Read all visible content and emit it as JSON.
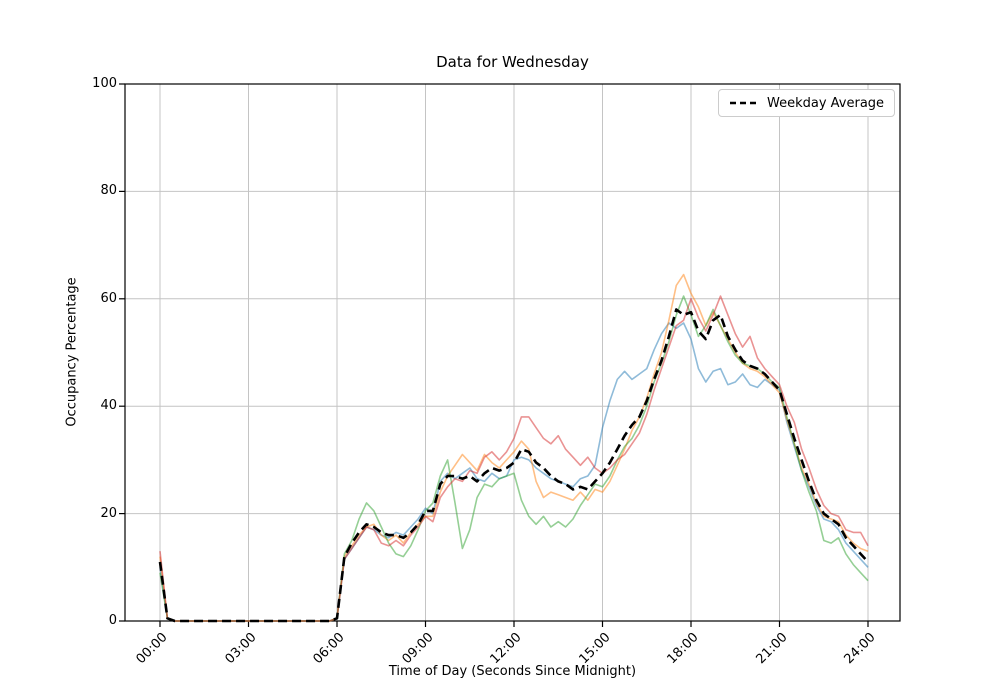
{
  "chart_data": {
    "type": "line",
    "title": "Data for Wednesday",
    "xlabel": "Time of Day (Seconds Since Midnight)",
    "ylabel": "Occupancy Percentage",
    "x_tick_labels": [
      "00:00",
      "03:00",
      "06:00",
      "09:00",
      "12:00",
      "15:00",
      "18:00",
      "21:00",
      "24:00"
    ],
    "x_tick_hours": [
      0,
      3,
      6,
      9,
      12,
      15,
      18,
      21,
      24
    ],
    "y_ticks": [
      0,
      20,
      40,
      60,
      80,
      100
    ],
    "ylim": [
      0,
      100
    ],
    "grid": true,
    "grid_color": "#c4c4c4",
    "legend": {
      "label": "Weekday Average",
      "position": "upper right"
    },
    "x_start_hour": 0,
    "x_step_hours": 0.25,
    "series": [
      {
        "id": "day-series-1",
        "color": "#1f77b4",
        "opacity": 0.5,
        "line_width": 1.6,
        "dash": "",
        "values": [
          10,
          0.5,
          0,
          0,
          0,
          0,
          0,
          0,
          0,
          0,
          0,
          0,
          0,
          0,
          0,
          0,
          0,
          0,
          0,
          0,
          0,
          0,
          0,
          0,
          0.5,
          11.5,
          13.5,
          15.5,
          17.5,
          17,
          16,
          15.5,
          16.5,
          16,
          17.5,
          19,
          21,
          20,
          26,
          27.5,
          26.5,
          27.5,
          28.5,
          26.5,
          26,
          27.5,
          26.5,
          27,
          30,
          30.5,
          30,
          28.5,
          27.5,
          26.5,
          26,
          25.5,
          25,
          26.5,
          27,
          29,
          36,
          41,
          45,
          46.5,
          45,
          46,
          47,
          50.5,
          53.5,
          55.5,
          54.5,
          55.5,
          52.5,
          47,
          44.5,
          46.5,
          47,
          44,
          44.5,
          46,
          44,
          43.5,
          45,
          44,
          43,
          37,
          32.5,
          28,
          25,
          21.5,
          19,
          18.5,
          17,
          14.5,
          13,
          11.5,
          10
        ]
      },
      {
        "id": "day-series-2",
        "color": "#ff7f0e",
        "opacity": 0.5,
        "line_width": 1.6,
        "dash": "",
        "values": [
          12,
          0.5,
          0,
          0,
          0,
          0,
          0,
          0,
          0,
          0,
          0,
          0,
          0,
          0,
          0,
          0,
          0,
          0,
          0,
          0,
          0,
          0,
          0,
          0,
          0.5,
          12,
          14,
          16,
          17.5,
          18,
          16,
          15,
          16,
          14.5,
          16.5,
          18,
          19.5,
          19.5,
          24,
          27,
          29,
          31,
          29.5,
          28,
          31,
          29.5,
          28.5,
          30,
          31.5,
          33.5,
          32,
          26,
          23,
          24,
          23.5,
          23,
          22.5,
          24,
          22.5,
          24.5,
          24,
          26,
          29,
          32,
          35.5,
          38,
          41.5,
          46,
          50,
          56,
          62.5,
          64.5,
          61,
          58.5,
          55,
          57.5,
          55,
          52.5,
          50,
          48,
          47,
          46.5,
          45.5,
          44,
          42.5,
          37.5,
          33,
          28.5,
          25.5,
          22,
          19.5,
          19,
          18.5,
          16,
          14.5,
          13.5,
          13
        ]
      },
      {
        "id": "day-series-3",
        "color": "#2ca02c",
        "opacity": 0.5,
        "line_width": 1.6,
        "dash": "",
        "values": [
          9,
          0.5,
          0,
          0,
          0,
          0,
          0,
          0,
          0,
          0,
          0,
          0,
          0,
          0,
          0,
          0,
          0,
          0,
          0,
          0,
          0,
          0,
          0,
          0,
          0.5,
          12.5,
          15,
          19,
          22,
          20.5,
          17.5,
          14.5,
          12.5,
          12,
          14,
          17,
          20.5,
          22,
          27,
          30,
          22,
          13.5,
          17,
          23,
          25.5,
          25,
          26.5,
          27,
          27.5,
          22.5,
          19.5,
          18,
          19.5,
          17.5,
          18.5,
          17.5,
          19,
          21.5,
          23.5,
          25.5,
          25,
          27,
          30,
          32.5,
          34,
          36.5,
          40,
          44.5,
          48,
          52,
          57,
          60.5,
          57,
          53,
          55,
          58,
          55,
          52,
          49.5,
          48,
          47.5,
          47,
          46,
          44.5,
          43.5,
          38,
          33,
          28,
          24,
          20.5,
          15,
          14.5,
          15.5,
          12.5,
          10.5,
          9,
          7.5
        ]
      },
      {
        "id": "day-series-4",
        "color": "#d62728",
        "opacity": 0.5,
        "line_width": 1.6,
        "dash": "",
        "values": [
          13,
          0.5,
          0,
          0,
          0,
          0,
          0,
          0,
          0,
          0,
          0,
          0,
          0,
          0,
          0,
          0,
          0,
          0,
          0,
          0,
          0,
          0,
          0,
          0,
          0.5,
          11.5,
          13.5,
          15.5,
          17.5,
          17,
          14.5,
          14,
          15,
          14,
          16,
          17.5,
          19.5,
          18.5,
          23,
          25,
          26.5,
          26,
          28,
          27.5,
          30.5,
          31.5,
          30,
          31.5,
          34,
          38,
          38,
          36,
          34,
          33,
          34.5,
          32,
          30.5,
          29,
          30.5,
          28.5,
          27.5,
          28.5,
          30,
          31,
          33,
          35,
          38.5,
          43,
          47,
          51,
          55,
          56,
          60,
          56.5,
          54,
          57,
          60.5,
          57,
          53.5,
          51,
          53,
          49,
          47,
          45.5,
          44,
          40,
          37,
          32,
          28.5,
          24.5,
          21.5,
          20,
          19.5,
          17,
          16.5,
          16.5,
          14
        ]
      },
      {
        "id": "weekday-average",
        "label": "Weekday Average",
        "color": "#000000",
        "opacity": 1,
        "line_width": 2.6,
        "dash": "9 5",
        "values": [
          11,
          0.5,
          0,
          0,
          0,
          0,
          0,
          0,
          0,
          0,
          0,
          0,
          0,
          0,
          0,
          0,
          0,
          0,
          0,
          0,
          0,
          0,
          0,
          0,
          0.5,
          12,
          14.5,
          16.5,
          18,
          17.5,
          16.5,
          16,
          16,
          15.5,
          16.5,
          18,
          20.5,
          20.5,
          25.5,
          27,
          27,
          26.5,
          27,
          26,
          27.5,
          28.5,
          28,
          28.5,
          29.5,
          32,
          31.5,
          29.5,
          28.5,
          27,
          26,
          25.5,
          24.5,
          25,
          24.5,
          26,
          27.5,
          29.5,
          32,
          34.5,
          36.5,
          38,
          41,
          45,
          48.5,
          53,
          58,
          57,
          57.5,
          54,
          52.5,
          56,
          57,
          53,
          50.5,
          48.5,
          47.5,
          47,
          46,
          44.5,
          43,
          38.5,
          34,
          30,
          26,
          22.5,
          20,
          19,
          18,
          15.5,
          14,
          12.5,
          11
        ]
      }
    ]
  }
}
